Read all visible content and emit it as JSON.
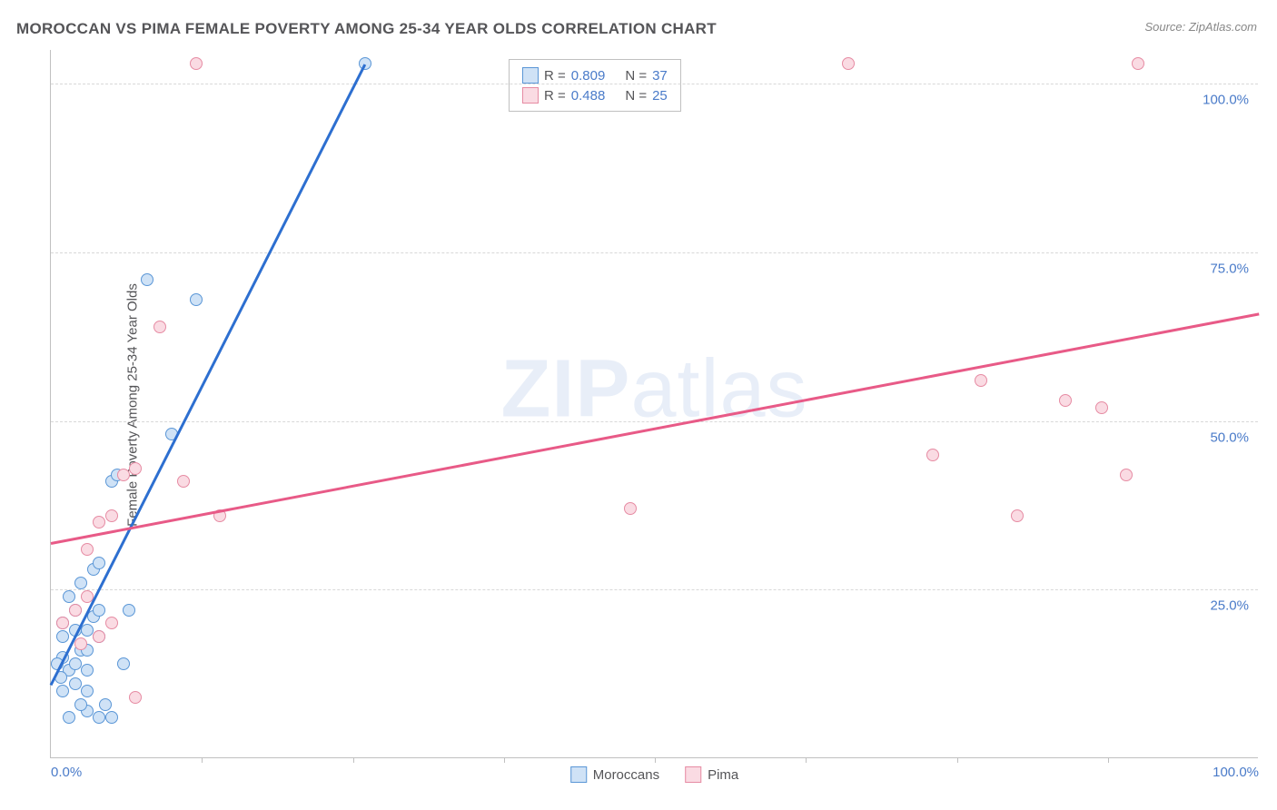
{
  "title": "MOROCCAN VS PIMA FEMALE POVERTY AMONG 25-34 YEAR OLDS CORRELATION CHART",
  "source": "Source: ZipAtlas.com",
  "y_axis_label": "Female Poverty Among 25-34 Year Olds",
  "watermark_part1": "ZIP",
  "watermark_part2": "atlas",
  "chart": {
    "type": "scatter",
    "xlim": [
      0,
      100
    ],
    "ylim": [
      0,
      105
    ],
    "x_ticks": [
      0,
      100
    ],
    "x_tick_labels": [
      "0.0%",
      "100.0%"
    ],
    "x_tick_minors": [
      12.5,
      25,
      37.5,
      50,
      62.5,
      75,
      87.5
    ],
    "y_gridlines": [
      25,
      50,
      75,
      100
    ],
    "y_tick_labels": [
      "25.0%",
      "50.0%",
      "75.0%",
      "100.0%"
    ],
    "background_color": "#ffffff",
    "grid_color": "#d8d8d8",
    "axis_color": "#c0c0c0",
    "label_color": "#4a7bc9",
    "marker_radius": 7,
    "marker_stroke_width": 1.2,
    "trend_line_width": 3
  },
  "series": [
    {
      "name": "Moroccans",
      "fill_color": "#cfe2f6",
      "stroke_color": "#5a96d6",
      "line_color": "#2d6fd0",
      "R": "0.809",
      "N": "37",
      "trend": {
        "x1": 0,
        "y1": 11,
        "x2": 26,
        "y2": 103
      },
      "points": [
        [
          1,
          15
        ],
        [
          1.5,
          13
        ],
        [
          2,
          14
        ],
        [
          2.5,
          16
        ],
        [
          1,
          18
        ],
        [
          2,
          19
        ],
        [
          3,
          19
        ],
        [
          3.5,
          21
        ],
        [
          2,
          22
        ],
        [
          4,
          22
        ],
        [
          1.5,
          24
        ],
        [
          3,
          16
        ],
        [
          2,
          11
        ],
        [
          3,
          7
        ],
        [
          4,
          6
        ],
        [
          5,
          6
        ],
        [
          4.5,
          8
        ],
        [
          3,
          13
        ],
        [
          1,
          20
        ],
        [
          2.5,
          26
        ],
        [
          3.5,
          28
        ],
        [
          4,
          29
        ],
        [
          5,
          41
        ],
        [
          5.5,
          42
        ],
        [
          6,
          14
        ],
        [
          6.5,
          22
        ],
        [
          10,
          48
        ],
        [
          12,
          68
        ],
        [
          8,
          71
        ],
        [
          26,
          103
        ],
        [
          1.5,
          6
        ],
        [
          2.5,
          8
        ],
        [
          1,
          10
        ],
        [
          3,
          10
        ],
        [
          0.8,
          12
        ],
        [
          0.5,
          14
        ],
        [
          4,
          18
        ]
      ]
    },
    {
      "name": "Pima",
      "fill_color": "#fadbe3",
      "stroke_color": "#e68ba3",
      "line_color": "#e85a87",
      "R": "0.488",
      "N": "25",
      "trend": {
        "x1": 0,
        "y1": 32,
        "x2": 100,
        "y2": 66
      },
      "points": [
        [
          1,
          20
        ],
        [
          2,
          22
        ],
        [
          3,
          24
        ],
        [
          2.5,
          17
        ],
        [
          4,
          18
        ],
        [
          5,
          20
        ],
        [
          3,
          31
        ],
        [
          4,
          35
        ],
        [
          5,
          36
        ],
        [
          6,
          42
        ],
        [
          7,
          43
        ],
        [
          11,
          41
        ],
        [
          14,
          36
        ],
        [
          9,
          64
        ],
        [
          7,
          9
        ],
        [
          12,
          103
        ],
        [
          48,
          37
        ],
        [
          66,
          103
        ],
        [
          73,
          45
        ],
        [
          77,
          56
        ],
        [
          80,
          36
        ],
        [
          84,
          53
        ],
        [
          87,
          52
        ],
        [
          89,
          42
        ],
        [
          90,
          103
        ]
      ]
    }
  ],
  "legend_text": {
    "R_label": "R =",
    "N_label": "N ="
  }
}
